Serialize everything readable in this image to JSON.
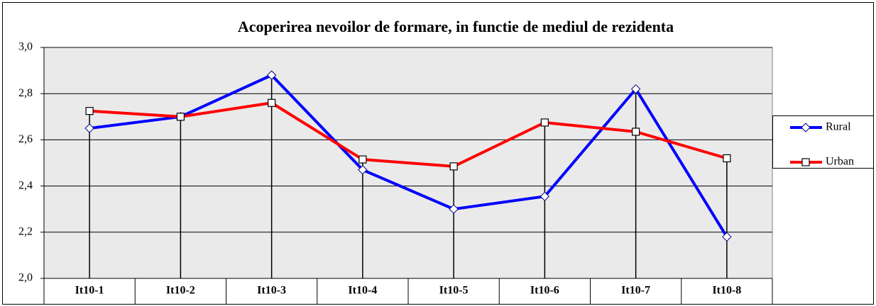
{
  "chart_data": {
    "type": "line",
    "title": "Acoperirea nevoilor de formare, in functie de mediul de rezidenta",
    "categories": [
      "It10-1",
      "It10-2",
      "It10-3",
      "It10-4",
      "It10-5",
      "It10-6",
      "It10-7",
      "It10-8"
    ],
    "series": [
      {
        "name": "Rural",
        "color": "#0000ff",
        "marker": "diamond",
        "values": [
          2.65,
          2.7,
          2.88,
          2.47,
          2.3,
          2.355,
          2.82,
          2.18
        ]
      },
      {
        "name": "Urban",
        "color": "#ff0000",
        "marker": "square",
        "values": [
          2.725,
          2.7,
          2.76,
          2.515,
          2.485,
          2.675,
          2.635,
          2.52
        ]
      }
    ],
    "ylim": [
      2.0,
      3.0
    ],
    "yticks": [
      {
        "value": 2.0,
        "label": "2,0"
      },
      {
        "value": 2.2,
        "label": "2,2"
      },
      {
        "value": 2.4,
        "label": "2,4"
      },
      {
        "value": 2.6,
        "label": "2,6"
      },
      {
        "value": 2.8,
        "label": "2,8"
      },
      {
        "value": 3.0,
        "label": "3,0"
      }
    ],
    "grid": true,
    "legend": "right",
    "drop_lines": true
  }
}
